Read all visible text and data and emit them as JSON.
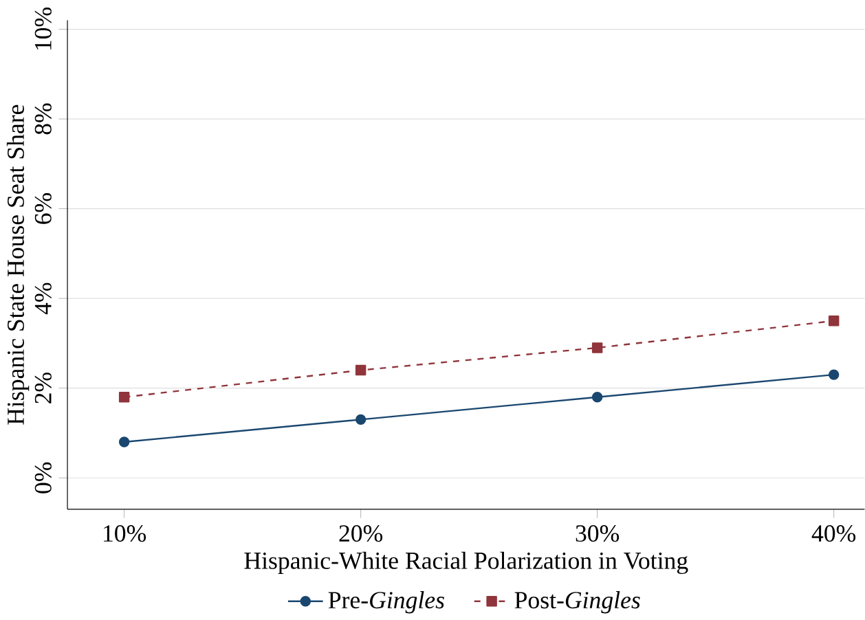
{
  "chart_data": {
    "type": "line",
    "xlabel": "Hispanic-White Racial Polarization in Voting",
    "ylabel": "Hispanic State House Seat Share",
    "x": [
      10,
      20,
      30,
      40
    ],
    "series": [
      {
        "name": "Pre-*Gingles*",
        "color": "#1a476f",
        "values": [
          0.8,
          1.3,
          1.8,
          2.3
        ],
        "marker": "circle",
        "line_style": "solid"
      },
      {
        "name": "Post-*Gingles*",
        "color": "#90353b",
        "values": [
          1.8,
          2.4,
          2.9,
          3.5
        ],
        "marker": "square",
        "line_style": "dashed"
      }
    ],
    "xlim": [
      7.6,
      41.3
    ],
    "ylim": [
      -0.7,
      10.2
    ],
    "xticks": [
      {
        "value": 10,
        "label": "10%"
      },
      {
        "value": 20,
        "label": "20%"
      },
      {
        "value": 30,
        "label": "30%"
      },
      {
        "value": 40,
        "label": "40%"
      }
    ],
    "yticks": [
      {
        "value": 0,
        "label": "0%"
      },
      {
        "value": 2,
        "label": "2%"
      },
      {
        "value": 4,
        "label": "4%"
      },
      {
        "value": 6,
        "label": "6%"
      },
      {
        "value": 8,
        "label": "8%"
      },
      {
        "value": 10,
        "label": "10%"
      }
    ],
    "grid": "y",
    "legend": "bottom"
  }
}
